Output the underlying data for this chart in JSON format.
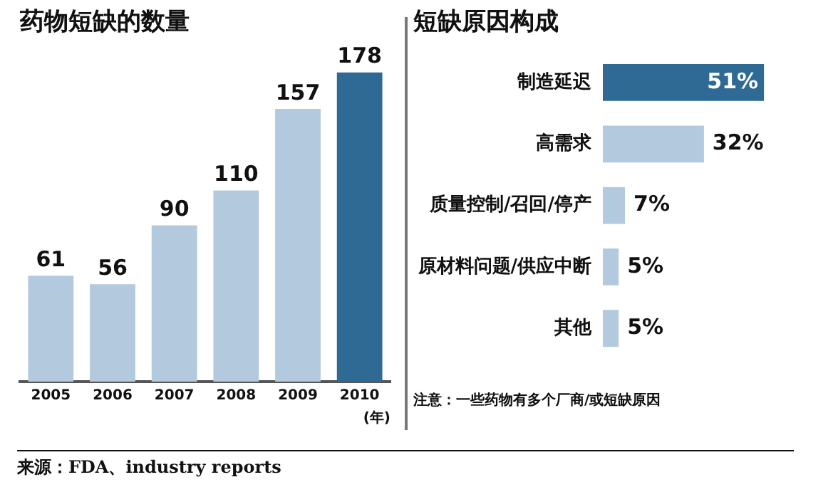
{
  "chart_data": [
    {
      "type": "bar",
      "title": "药物短缺的数量",
      "categories": [
        "2005",
        "2006",
        "2007",
        "2008",
        "2009",
        "2010"
      ],
      "xlabel": "(年)",
      "values": [
        61,
        56,
        90,
        110,
        157,
        178
      ],
      "colors": [
        "#b3c9de",
        "#b3c9de",
        "#b3c9de",
        "#b3c9de",
        "#b3c9de",
        "#2f6a94"
      ],
      "data_labels": true,
      "grid": false,
      "legend": false,
      "tick_labels": "x",
      "annotations": [
        "来源：FDA、industry reports"
      ]
    },
    {
      "type": "bar",
      "orientation": "horizontal",
      "title": "短缺原因构成",
      "categories": [
        "制造延迟",
        "高需求",
        "质量控制/召回/停产",
        "原材料问题/供应中断",
        "其他"
      ],
      "values": [
        51,
        32,
        7,
        5,
        5
      ],
      "value_labels": [
        "51%",
        "32%",
        "7%",
        "5%",
        "5%"
      ],
      "colors": [
        "#2f6a94",
        "#b3c9de",
        "#b3c9de",
        "#b3c9de",
        "#b3c9de"
      ],
      "grid": false,
      "legend": false,
      "tick_labels": "y",
      "annotations": [
        "注意：一些药物有多个厂商/或短缺原因"
      ]
    }
  ]
}
